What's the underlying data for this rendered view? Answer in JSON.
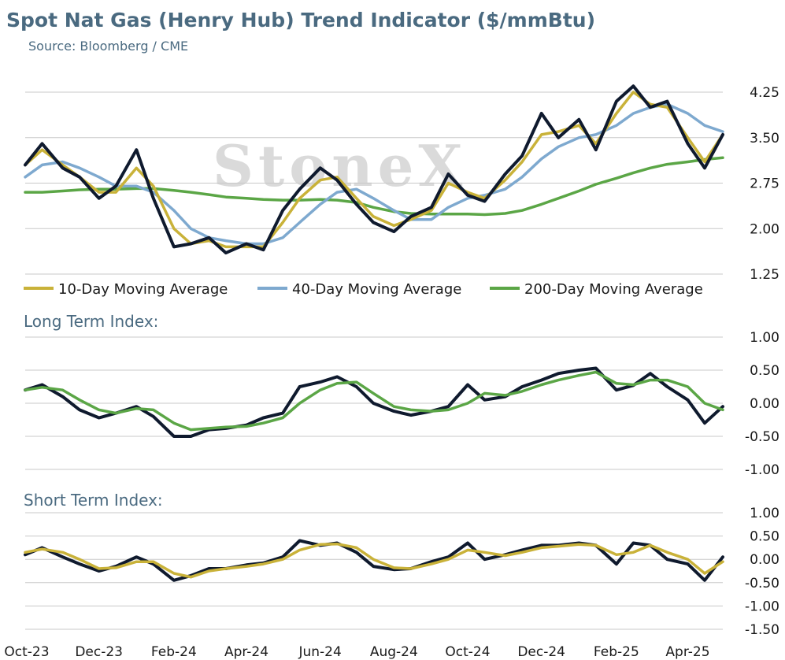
{
  "title": "Spot Nat Gas (Henry Hub) Trend Indicator ($/mmBtu)",
  "subtitle": "Source: Bloomberg / CME",
  "watermark": "StoneX",
  "colors": {
    "title": "#4a6a80",
    "price": "#0f1a2e",
    "ma10": "#c9b239",
    "ma40": "#7ea9cf",
    "ma200": "#5ba646",
    "grid": "#c8c8c8",
    "watermark": "#d2d2d2"
  },
  "chart_data": [
    {
      "type": "line",
      "panel": "price",
      "title": "",
      "yticks": [
        "4.25",
        "3.50",
        "2.75",
        "2.00",
        "1.25"
      ],
      "ylim": [
        1.25,
        4.25
      ],
      "x_range": [
        "2023-10-01",
        "2025-04-30"
      ],
      "x_tick_labels": [
        "Oct-23",
        "Dec-23",
        "Feb-24",
        "Apr-24",
        "Jun-24",
        "Aug-24",
        "Oct-24",
        "Dec-24",
        "Feb-25",
        "Apr-25"
      ],
      "x": [
        "2023-10-01",
        "2023-10-15",
        "2023-11-01",
        "2023-11-15",
        "2023-12-01",
        "2023-12-15",
        "2024-01-01",
        "2024-01-15",
        "2024-02-01",
        "2024-02-15",
        "2024-03-01",
        "2024-03-15",
        "2024-04-01",
        "2024-04-15",
        "2024-05-01",
        "2024-05-15",
        "2024-06-01",
        "2024-06-15",
        "2024-07-01",
        "2024-07-15",
        "2024-08-01",
        "2024-08-15",
        "2024-09-01",
        "2024-09-15",
        "2024-10-01",
        "2024-10-15",
        "2024-11-01",
        "2024-11-15",
        "2024-12-01",
        "2024-12-15",
        "2025-01-01",
        "2025-01-15",
        "2025-02-01",
        "2025-02-15",
        "2025-03-01",
        "2025-03-15",
        "2025-04-01",
        "2025-04-15",
        "2025-04-30"
      ],
      "legend": [
        "10-Day Moving Average",
        "40-Day Moving Average",
        "200-Day Moving Average"
      ],
      "legend_position": "bottom",
      "series": [
        {
          "name": "",
          "role": "price",
          "values": [
            3.05,
            3.4,
            3.0,
            2.85,
            2.5,
            2.7,
            3.3,
            2.5,
            1.7,
            1.75,
            1.85,
            1.6,
            1.75,
            1.65,
            2.3,
            2.65,
            3.0,
            2.8,
            2.4,
            2.1,
            1.95,
            2.2,
            2.35,
            2.9,
            2.55,
            2.45,
            2.9,
            3.2,
            3.9,
            3.5,
            3.8,
            3.3,
            4.1,
            4.35,
            4.0,
            4.1,
            3.4,
            3.0,
            3.55
          ]
        },
        {
          "name": "10-Day Moving Average",
          "role": "ma10",
          "values": [
            3.05,
            3.3,
            3.05,
            2.85,
            2.6,
            2.6,
            3.0,
            2.7,
            2.0,
            1.75,
            1.8,
            1.7,
            1.7,
            1.7,
            2.1,
            2.5,
            2.8,
            2.85,
            2.5,
            2.2,
            2.05,
            2.15,
            2.3,
            2.75,
            2.6,
            2.5,
            2.8,
            3.1,
            3.55,
            3.6,
            3.7,
            3.4,
            3.9,
            4.25,
            4.05,
            4.0,
            3.5,
            3.1,
            3.55
          ]
        },
        {
          "name": "40-Day Moving Average",
          "role": "ma40",
          "values": [
            2.85,
            3.05,
            3.1,
            3.0,
            2.85,
            2.7,
            2.7,
            2.6,
            2.3,
            2.0,
            1.85,
            1.8,
            1.75,
            1.75,
            1.85,
            2.1,
            2.4,
            2.6,
            2.65,
            2.5,
            2.3,
            2.15,
            2.15,
            2.35,
            2.5,
            2.55,
            2.65,
            2.85,
            3.15,
            3.35,
            3.5,
            3.55,
            3.7,
            3.9,
            4.0,
            4.05,
            3.9,
            3.7,
            3.6
          ]
        },
        {
          "name": "200-Day Moving Average",
          "role": "ma200",
          "values": [
            2.6,
            2.6,
            2.62,
            2.64,
            2.65,
            2.65,
            2.66,
            2.66,
            2.63,
            2.6,
            2.56,
            2.52,
            2.5,
            2.48,
            2.47,
            2.47,
            2.48,
            2.47,
            2.43,
            2.35,
            2.28,
            2.25,
            2.24,
            2.24,
            2.24,
            2.23,
            2.25,
            2.3,
            2.4,
            2.5,
            2.62,
            2.73,
            2.83,
            2.92,
            3.0,
            3.06,
            3.1,
            3.14,
            3.17
          ]
        }
      ]
    },
    {
      "type": "line",
      "panel": "long",
      "title": "Long Term Index:",
      "yticks": [
        "1.00",
        "0.50",
        "0.00",
        "-0.50",
        "-1.00"
      ],
      "ylim": [
        -1.0,
        1.0
      ],
      "x": [
        "2023-10-01",
        "2023-10-15",
        "2023-11-01",
        "2023-11-15",
        "2023-12-01",
        "2023-12-15",
        "2024-01-01",
        "2024-01-15",
        "2024-02-01",
        "2024-02-15",
        "2024-03-01",
        "2024-03-15",
        "2024-04-01",
        "2024-04-15",
        "2024-05-01",
        "2024-05-15",
        "2024-06-01",
        "2024-06-15",
        "2024-07-01",
        "2024-07-15",
        "2024-08-01",
        "2024-08-15",
        "2024-09-01",
        "2024-09-15",
        "2024-10-01",
        "2024-10-15",
        "2024-11-01",
        "2024-11-15",
        "2024-12-01",
        "2024-12-15",
        "2025-01-01",
        "2025-01-15",
        "2025-02-01",
        "2025-02-15",
        "2025-03-01",
        "2025-03-15",
        "2025-04-01",
        "2025-04-15",
        "2025-04-30"
      ],
      "series": [
        {
          "name": "",
          "role": "index",
          "values": [
            0.2,
            0.28,
            0.1,
            -0.1,
            -0.22,
            -0.15,
            -0.05,
            -0.2,
            -0.5,
            -0.5,
            -0.4,
            -0.38,
            -0.33,
            -0.22,
            -0.15,
            0.25,
            0.32,
            0.4,
            0.25,
            0.0,
            -0.12,
            -0.18,
            -0.12,
            -0.05,
            0.28,
            0.05,
            0.1,
            0.25,
            0.35,
            0.45,
            0.5,
            0.53,
            0.2,
            0.27,
            0.45,
            0.25,
            0.05,
            -0.3,
            -0.05
          ]
        },
        {
          "name": "",
          "role": "signal",
          "values": [
            0.2,
            0.24,
            0.2,
            0.05,
            -0.1,
            -0.15,
            -0.08,
            -0.1,
            -0.3,
            -0.4,
            -0.38,
            -0.36,
            -0.35,
            -0.3,
            -0.22,
            0.0,
            0.2,
            0.3,
            0.32,
            0.15,
            -0.05,
            -0.1,
            -0.12,
            -0.1,
            0.0,
            0.15,
            0.12,
            0.18,
            0.28,
            0.35,
            0.42,
            0.47,
            0.3,
            0.28,
            0.35,
            0.35,
            0.25,
            0.0,
            -0.1
          ]
        }
      ]
    },
    {
      "type": "line",
      "panel": "short",
      "title": "Short Term Index:",
      "yticks": [
        "1.00",
        "0.50",
        "0.00",
        "-0.50",
        "-1.00",
        "-1.50"
      ],
      "ylim": [
        -1.5,
        1.0
      ],
      "x": [
        "2023-10-01",
        "2023-10-15",
        "2023-11-01",
        "2023-11-15",
        "2023-12-01",
        "2023-12-15",
        "2024-01-01",
        "2024-01-15",
        "2024-02-01",
        "2024-02-15",
        "2024-03-01",
        "2024-03-15",
        "2024-04-01",
        "2024-04-15",
        "2024-05-01",
        "2024-05-15",
        "2024-06-01",
        "2024-06-15",
        "2024-07-01",
        "2024-07-15",
        "2024-08-01",
        "2024-08-15",
        "2024-09-01",
        "2024-09-15",
        "2024-10-01",
        "2024-10-15",
        "2024-11-01",
        "2024-11-15",
        "2024-12-01",
        "2024-12-15",
        "2025-01-01",
        "2025-01-15",
        "2025-02-01",
        "2025-02-15",
        "2025-03-01",
        "2025-03-15",
        "2025-04-01",
        "2025-04-15",
        "2025-04-30"
      ],
      "series": [
        {
          "name": "",
          "role": "index",
          "values": [
            0.1,
            0.25,
            0.05,
            -0.1,
            -0.25,
            -0.15,
            0.05,
            -0.1,
            -0.45,
            -0.35,
            -0.2,
            -0.2,
            -0.12,
            -0.08,
            0.05,
            0.4,
            0.3,
            0.35,
            0.15,
            -0.15,
            -0.22,
            -0.2,
            -0.05,
            0.05,
            0.35,
            0.0,
            0.1,
            0.2,
            0.3,
            0.3,
            0.35,
            0.3,
            -0.1,
            0.35,
            0.3,
            0.0,
            -0.1,
            -0.45,
            0.05
          ]
        },
        {
          "name": "",
          "role": "signal",
          "values": [
            0.15,
            0.22,
            0.15,
            0.0,
            -0.2,
            -0.18,
            -0.05,
            -0.05,
            -0.3,
            -0.38,
            -0.25,
            -0.2,
            -0.15,
            -0.1,
            0.0,
            0.2,
            0.32,
            0.33,
            0.25,
            0.0,
            -0.18,
            -0.2,
            -0.1,
            0.0,
            0.2,
            0.15,
            0.08,
            0.15,
            0.25,
            0.28,
            0.32,
            0.3,
            0.1,
            0.15,
            0.3,
            0.15,
            0.0,
            -0.3,
            -0.05
          ]
        }
      ]
    }
  ]
}
